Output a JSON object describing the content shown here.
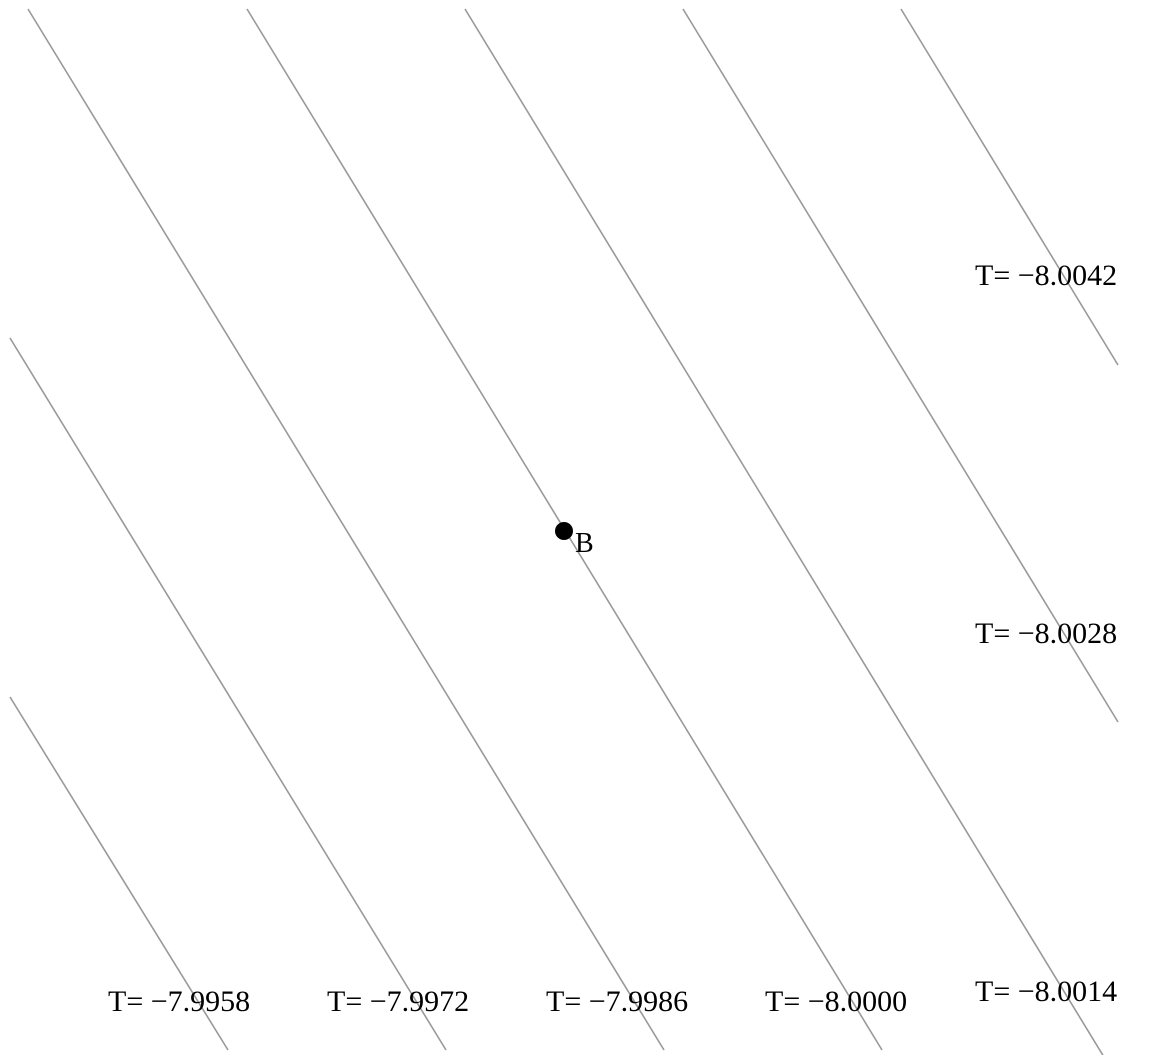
{
  "labels": {
    "l1": "T= −7.9958",
    "l2": "T= −7.9972",
    "l3": "T= −7.9986",
    "l4": "T= −8.0000",
    "l5": "T= −8.0014",
    "l6": "T= −8.0028",
    "l7": "T= −8.0042"
  },
  "point": {
    "name": "B"
  },
  "colors": {
    "contour": "#999999",
    "text": "#000000",
    "background": "#ffffff"
  }
}
